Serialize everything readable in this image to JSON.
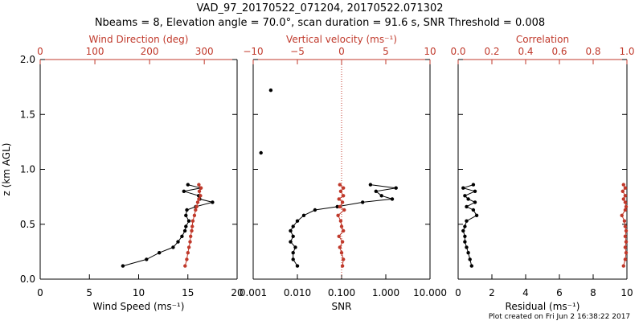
{
  "header": {
    "title_line1": "VAD_97_20170522_071204, 20170522.071302",
    "title_line2": "Nbeams = 8, Elevation angle = 70.0°, scan duration = 91.6 s, SNR Threshold = 0.008"
  },
  "footer": {
    "plot_created": "Plot created on Fri Jun  2 16:38:22 2017"
  },
  "colors": {
    "black": "#000000",
    "red": "#c0392b"
  },
  "chart_data": [
    {
      "type": "line",
      "ylabel": "z (km AGL)",
      "ylim": [
        0,
        2
      ],
      "ytick_labels": [
        "0.0",
        "0.5",
        "1.0",
        "1.5",
        "2.0"
      ],
      "bottom_axis": {
        "label": "Wind Speed (ms⁻¹)",
        "lim": [
          0,
          20
        ],
        "tick_labels": [
          "0",
          "5",
          "10",
          "15",
          "20"
        ],
        "tick_values": [
          0,
          5,
          10,
          15,
          20
        ]
      },
      "top_axis": {
        "label": "Wind Direction (deg)",
        "lim": [
          0,
          360
        ],
        "tick_labels": [
          "0",
          "100",
          "200",
          "300"
        ],
        "tick_values": [
          0,
          100,
          200,
          300
        ]
      },
      "series": [
        {
          "color": "black",
          "axis": "bottom",
          "x": [
            8.4,
            10.8,
            12.1,
            13.5,
            14.0,
            14.4,
            14.7,
            14.8,
            15.1,
            14.8,
            14.9,
            15.8,
            17.5,
            16.2,
            16.1,
            14.6,
            16.3,
            15.0
          ],
          "y": [
            0.12,
            0.18,
            0.24,
            0.29,
            0.34,
            0.39,
            0.44,
            0.48,
            0.53,
            0.58,
            0.63,
            0.66,
            0.7,
            0.73,
            0.76,
            0.8,
            0.83,
            0.86
          ]
        },
        {
          "color": "red",
          "axis": "top",
          "x": [
            265,
            268,
            270,
            272,
            274,
            275,
            277,
            278,
            279,
            282,
            284,
            286,
            288,
            290,
            293,
            291,
            294,
            290
          ],
          "y": [
            0.12,
            0.18,
            0.24,
            0.29,
            0.34,
            0.39,
            0.44,
            0.48,
            0.53,
            0.58,
            0.63,
            0.66,
            0.7,
            0.73,
            0.76,
            0.8,
            0.83,
            0.86
          ]
        }
      ]
    },
    {
      "type": "line",
      "ylim": [
        0,
        2
      ],
      "bottom_axis": {
        "label": "SNR",
        "scale": "log",
        "lim": [
          0.001,
          10
        ],
        "tick_labels": [
          "0.001",
          "0.010",
          "0.100",
          "1.000",
          "10.000"
        ],
        "tick_values": [
          0.001,
          0.01,
          0.1,
          1,
          10
        ]
      },
      "top_axis": {
        "label": "Vertical velocity (ms⁻¹)",
        "lim": [
          -10,
          10
        ],
        "tick_labels": [
          "−10",
          "−5",
          "0",
          "5",
          "10"
        ],
        "tick_values": [
          -10,
          -5,
          0,
          5,
          10
        ],
        "reference_line": 0
      },
      "series": [
        {
          "color": "black",
          "axis": "bottom",
          "x": [
            0.0015,
            0.0025
          ],
          "y": [
            1.15,
            1.72
          ],
          "style": "points"
        },
        {
          "color": "black",
          "axis": "bottom",
          "x": [
            0.01,
            0.008,
            0.008,
            0.009,
            0.007,
            0.008,
            0.007,
            0.008,
            0.01,
            0.014,
            0.025,
            0.08,
            0.3,
            1.4,
            0.8,
            0.6,
            1.7,
            0.45
          ],
          "y": [
            0.12,
            0.18,
            0.24,
            0.29,
            0.34,
            0.39,
            0.44,
            0.48,
            0.53,
            0.58,
            0.63,
            0.66,
            0.7,
            0.73,
            0.76,
            0.8,
            0.83,
            0.86
          ]
        },
        {
          "color": "red",
          "axis": "top",
          "x": [
            0.1,
            0.2,
            0.0,
            -0.2,
            0.1,
            -0.3,
            0.2,
            0.0,
            -0.1,
            -0.4,
            0.3,
            -0.2,
            0.1,
            -0.3,
            0.2,
            -0.1,
            0.2,
            -0.2
          ],
          "y": [
            0.12,
            0.18,
            0.24,
            0.29,
            0.34,
            0.39,
            0.44,
            0.48,
            0.53,
            0.58,
            0.63,
            0.66,
            0.7,
            0.73,
            0.76,
            0.8,
            0.83,
            0.86
          ]
        }
      ]
    },
    {
      "type": "line",
      "ylim": [
        0,
        2
      ],
      "bottom_axis": {
        "label": "Residual (ms⁻¹)",
        "lim": [
          0,
          10
        ],
        "tick_labels": [
          "0",
          "2",
          "4",
          "6",
          "8",
          "10"
        ],
        "tick_values": [
          0,
          2,
          4,
          6,
          8,
          10
        ]
      },
      "top_axis": {
        "label": "Correlation",
        "lim": [
          0,
          1
        ],
        "tick_labels": [
          "0.0",
          "0.2",
          "0.4",
          "0.6",
          "0.8",
          "1.0"
        ],
        "tick_values": [
          0,
          0.2,
          0.4,
          0.6,
          0.8,
          1.0
        ]
      },
      "series": [
        {
          "color": "black",
          "axis": "bottom",
          "x": [
            0.8,
            0.7,
            0.6,
            0.5,
            0.4,
            0.4,
            0.3,
            0.4,
            0.5,
            1.1,
            0.9,
            0.5,
            1.0,
            0.6,
            0.4,
            1.0,
            0.3,
            0.9
          ],
          "y": [
            0.12,
            0.18,
            0.24,
            0.29,
            0.34,
            0.39,
            0.44,
            0.48,
            0.53,
            0.58,
            0.63,
            0.66,
            0.7,
            0.73,
            0.76,
            0.8,
            0.83,
            0.86
          ]
        },
        {
          "color": "red",
          "axis": "top",
          "x": [
            0.98,
            0.99,
            0.995,
            0.99,
            0.995,
            0.99,
            0.995,
            0.99,
            0.985,
            0.97,
            0.99,
            0.995,
            0.99,
            0.98,
            0.99,
            0.975,
            0.99,
            0.98
          ],
          "y": [
            0.12,
            0.18,
            0.24,
            0.29,
            0.34,
            0.39,
            0.44,
            0.48,
            0.53,
            0.58,
            0.63,
            0.66,
            0.7,
            0.73,
            0.76,
            0.8,
            0.83,
            0.86
          ]
        }
      ]
    }
  ]
}
